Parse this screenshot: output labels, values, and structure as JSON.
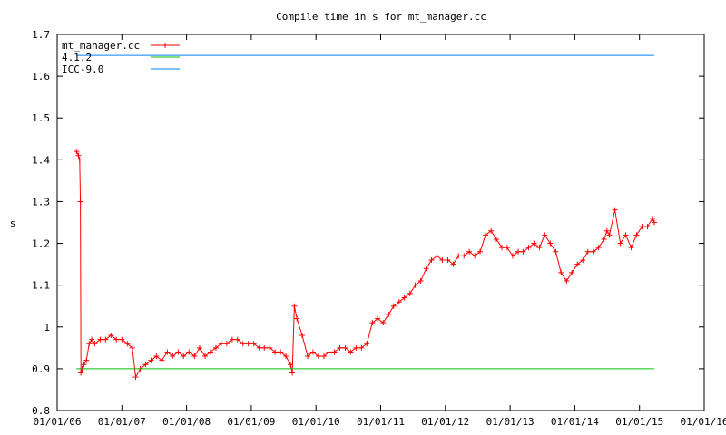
{
  "chart_data": {
    "type": "line",
    "title": "Compile time in s for mt_manager.cc",
    "ylabel": "s",
    "xlabel": "",
    "xlim": [
      "2006-01-01",
      "2016-01-01"
    ],
    "ylim": [
      0.8,
      1.7
    ],
    "grid": false,
    "legend_position": "top-left",
    "x_ticks": [
      "01/01/06",
      "01/01/07",
      "01/01/08",
      "01/01/09",
      "01/01/10",
      "01/01/11",
      "01/01/12",
      "01/01/13",
      "01/01/14",
      "01/01/15",
      "01/01/16"
    ],
    "y_ticks": [
      "0.8",
      "0.9",
      "1",
      "1.1",
      "1.2",
      "1.3",
      "1.4",
      "1.5",
      "1.6",
      "1.7"
    ],
    "series": [
      {
        "name": "mt_manager.cc",
        "color": "#ff0000",
        "marker": "plus",
        "x": [
          "2006-04-20",
          "2006-05-01",
          "2006-05-08",
          "2006-05-12",
          "2006-05-15",
          "2006-05-22",
          "2006-06-01",
          "2006-06-15",
          "2006-07-01",
          "2006-07-15",
          "2006-08-01",
          "2006-09-01",
          "2006-10-01",
          "2006-11-01",
          "2006-12-01",
          "2007-01-01",
          "2007-02-01",
          "2007-03-01",
          "2007-03-20",
          "2007-04-15",
          "2007-05-15",
          "2007-06-15",
          "2007-07-15",
          "2007-08-15",
          "2007-09-15",
          "2007-10-15",
          "2007-11-15",
          "2007-12-15",
          "2008-01-15",
          "2008-02-15",
          "2008-03-15",
          "2008-04-15",
          "2008-05-15",
          "2008-06-15",
          "2008-07-15",
          "2008-08-15",
          "2008-09-15",
          "2008-10-15",
          "2008-11-15",
          "2008-12-15",
          "2009-01-15",
          "2009-02-15",
          "2009-03-15",
          "2009-04-15",
          "2009-05-15",
          "2009-06-15",
          "2009-07-15",
          "2009-08-10",
          "2009-08-20",
          "2009-09-01",
          "2009-09-15",
          "2009-10-15",
          "2009-11-15",
          "2009-12-15",
          "2010-01-15",
          "2010-02-15",
          "2010-03-15",
          "2010-04-15",
          "2010-05-15",
          "2010-06-15",
          "2010-07-15",
          "2010-08-15",
          "2010-09-15",
          "2010-10-15",
          "2010-11-15",
          "2010-12-15",
          "2011-01-15",
          "2011-02-15",
          "2011-03-15",
          "2011-04-15",
          "2011-05-15",
          "2011-06-15",
          "2011-07-15",
          "2011-08-15",
          "2011-09-15",
          "2011-10-15",
          "2011-11-15",
          "2011-12-15",
          "2012-01-15",
          "2012-02-15",
          "2012-03-15",
          "2012-04-15",
          "2012-05-15",
          "2012-06-15",
          "2012-07-15",
          "2012-08-15",
          "2012-09-15",
          "2012-10-15",
          "2012-11-15",
          "2012-12-15",
          "2013-01-15",
          "2013-02-15",
          "2013-03-15",
          "2013-04-15",
          "2013-05-15",
          "2013-06-15",
          "2013-07-15",
          "2013-08-15",
          "2013-09-15",
          "2013-10-15",
          "2013-11-15",
          "2013-12-15",
          "2014-01-15",
          "2014-02-15",
          "2014-03-15",
          "2014-04-15",
          "2014-05-15",
          "2014-06-15",
          "2014-07-01",
          "2014-07-15",
          "2014-08-15",
          "2014-09-15",
          "2014-10-15",
          "2014-11-15",
          "2014-12-15",
          "2015-01-15",
          "2015-02-15",
          "2015-03-15",
          "2015-03-25"
        ],
        "values": [
          1.42,
          1.41,
          1.4,
          1.3,
          0.89,
          0.9,
          0.91,
          0.92,
          0.96,
          0.97,
          0.96,
          0.97,
          0.97,
          0.98,
          0.97,
          0.97,
          0.96,
          0.95,
          0.88,
          0.9,
          0.91,
          0.92,
          0.93,
          0.92,
          0.94,
          0.93,
          0.94,
          0.93,
          0.94,
          0.93,
          0.95,
          0.93,
          0.94,
          0.95,
          0.96,
          0.96,
          0.97,
          0.97,
          0.96,
          0.96,
          0.96,
          0.95,
          0.95,
          0.95,
          0.94,
          0.94,
          0.93,
          0.91,
          0.89,
          1.05,
          1.02,
          0.98,
          0.93,
          0.94,
          0.93,
          0.93,
          0.94,
          0.94,
          0.95,
          0.95,
          0.94,
          0.95,
          0.95,
          0.96,
          1.01,
          1.02,
          1.01,
          1.03,
          1.05,
          1.06,
          1.07,
          1.08,
          1.1,
          1.11,
          1.14,
          1.16,
          1.17,
          1.16,
          1.16,
          1.15,
          1.17,
          1.17,
          1.18,
          1.17,
          1.18,
          1.22,
          1.23,
          1.21,
          1.19,
          1.19,
          1.17,
          1.18,
          1.18,
          1.19,
          1.2,
          1.19,
          1.22,
          1.2,
          1.18,
          1.13,
          1.11,
          1.13,
          1.15,
          1.16,
          1.18,
          1.18,
          1.19,
          1.21,
          1.23,
          1.22,
          1.28,
          1.2,
          1.22,
          1.19,
          1.22,
          1.24,
          1.24,
          1.26,
          1.25
        ]
      },
      {
        "name": "4.1.2",
        "color": "#00c000",
        "x": [
          "2006-04-20",
          "2015-03-25"
        ],
        "values": [
          0.9,
          0.9
        ]
      },
      {
        "name": "ICC-9.0",
        "color": "#0080ff",
        "x": [
          "2006-04-20",
          "2015-03-25"
        ],
        "values": [
          1.65,
          1.65
        ]
      }
    ]
  }
}
